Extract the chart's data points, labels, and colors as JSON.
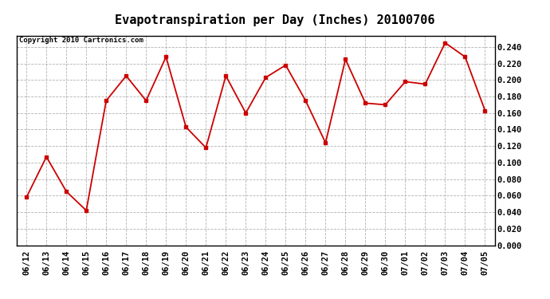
{
  "title": "Evapotranspiration per Day (Inches) 20100706",
  "copyright_text": "Copyright 2010 Cartronics.com",
  "dates": [
    "06/12",
    "06/13",
    "06/14",
    "06/15",
    "06/16",
    "06/17",
    "06/18",
    "06/19",
    "06/20",
    "06/21",
    "06/22",
    "06/23",
    "06/24",
    "06/25",
    "06/26",
    "06/27",
    "06/28",
    "06/29",
    "06/30",
    "07/01",
    "07/02",
    "07/03",
    "07/04",
    "07/05"
  ],
  "values": [
    0.058,
    0.107,
    0.065,
    0.042,
    0.175,
    0.205,
    0.175,
    0.228,
    0.143,
    0.118,
    0.205,
    0.16,
    0.203,
    0.218,
    0.175,
    0.124,
    0.225,
    0.172,
    0.17,
    0.198,
    0.195,
    0.245,
    0.228,
    0.163
  ],
  "line_color": "#cc0000",
  "marker": "s",
  "marker_size": 3,
  "ylim": [
    0.0,
    0.2534
  ],
  "yticks": [
    0.0,
    0.02,
    0.04,
    0.06,
    0.08,
    0.1,
    0.12,
    0.14,
    0.16,
    0.18,
    0.2,
    0.22,
    0.24
  ],
  "background_color": "#ffffff",
  "grid_color": "#aaaaaa",
  "title_fontsize": 11,
  "copyright_fontsize": 6.5,
  "tick_fontsize": 7.5,
  "fig_width": 6.9,
  "fig_height": 3.75,
  "dpi": 100
}
